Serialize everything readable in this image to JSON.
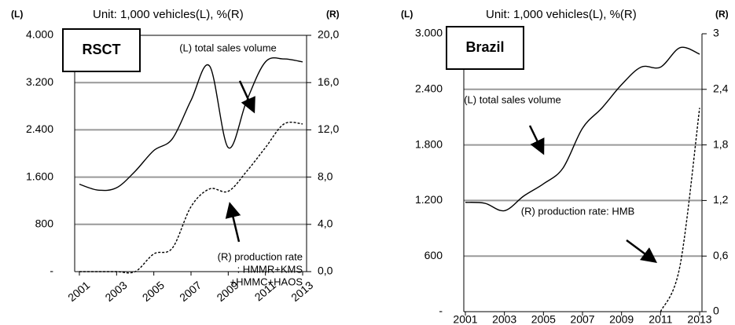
{
  "chart_data": [
    {
      "type": "line",
      "title": "RSCT",
      "unit_label": "Unit: 1,000 vehicles(L), %(R)",
      "left_axis_label": "(L)",
      "right_axis_label": "(R)",
      "x": [
        2001,
        2002,
        2003,
        2004,
        2005,
        2006,
        2007,
        2008,
        2009,
        2010,
        2011,
        2012,
        2013
      ],
      "xticks": [
        2001,
        2003,
        2005,
        2007,
        2009,
        2011,
        2013
      ],
      "series": [
        {
          "name": "(L) total sales volume",
          "color": "#000000",
          "line_style": "solid",
          "axis": "y",
          "values": [
            1480,
            1380,
            1420,
            1700,
            2050,
            2250,
            2900,
            3480,
            2100,
            2900,
            3550,
            3600,
            3550
          ]
        },
        {
          "name": "(R) production rate",
          "color": "#000000",
          "line_style": "dashed",
          "axis": "y2",
          "values": [
            0,
            0,
            0,
            0,
            1.5,
            2,
            5.5,
            7,
            6.8,
            8.5,
            10.5,
            12.5,
            12.5
          ]
        }
      ],
      "annotations": [
        "(L) total sales volume",
        "(R) production rate",
        ": HMMR+KMS",
        "+HMMC+HAOS"
      ],
      "ylim": [
        0,
        4000
      ],
      "yticks": [
        {
          "value": 0,
          "label": "-"
        },
        800,
        {
          "value": 1600,
          "label": "1.600"
        },
        {
          "value": 2400,
          "label": "2.400"
        },
        {
          "value": 3200,
          "label": "3.200"
        },
        {
          "value": 4000,
          "label": "4.000"
        }
      ],
      "y2lim": [
        0,
        20
      ],
      "y2ticks": [
        {
          "value": 0,
          "label": "0,0"
        },
        {
          "value": 4,
          "label": "4,0"
        },
        {
          "value": 8,
          "label": "8,0"
        },
        {
          "value": 12,
          "label": "12,0"
        },
        {
          "value": 16,
          "label": "16,0"
        },
        {
          "value": 20,
          "label": "20,0"
        }
      ],
      "grid": true
    },
    {
      "type": "line",
      "title": "Brazil",
      "unit_label": "Unit: 1,000 vehicles(L), %(R)",
      "left_axis_label": "(L)",
      "right_axis_label": "(R)",
      "x": [
        2001,
        2002,
        2003,
        2004,
        2005,
        2006,
        2007,
        2008,
        2009,
        2010,
        2011,
        2012,
        2013
      ],
      "xticks": [
        2001,
        2003,
        2005,
        2007,
        2009,
        2011,
        2013
      ],
      "series": [
        {
          "name": "(L) total sales volume",
          "color": "#000000",
          "line_style": "solid",
          "axis": "y",
          "values": [
            1180,
            1170,
            1090,
            1250,
            1380,
            1550,
            1980,
            2200,
            2450,
            2640,
            2640,
            2850,
            2780
          ]
        },
        {
          "name": "(R) production rate: HMB",
          "color": "#000000",
          "line_style": "dashed",
          "axis": "y2",
          "values": [
            null,
            null,
            null,
            null,
            null,
            null,
            null,
            null,
            null,
            null,
            0,
            0.5,
            2.2
          ]
        }
      ],
      "annotations": [
        "(L) total sales volume",
        "(R) production rate: HMB"
      ],
      "ylim": [
        0,
        3000
      ],
      "yticks": [
        {
          "value": 0,
          "label": "-"
        },
        600,
        {
          "value": 1200,
          "label": "1.200"
        },
        {
          "value": 1800,
          "label": "1.800"
        },
        {
          "value": 2400,
          "label": "2.400"
        },
        {
          "value": 3000,
          "label": "3.000"
        }
      ],
      "y2lim": [
        0,
        3
      ],
      "y2ticks": [
        0,
        {
          "value": 0.6,
          "label": "0,6"
        },
        {
          "value": 1.2,
          "label": "1,2"
        },
        {
          "value": 1.8,
          "label": "1,8"
        },
        {
          "value": 2.4,
          "label": "2,4"
        },
        3
      ],
      "grid": true
    }
  ]
}
